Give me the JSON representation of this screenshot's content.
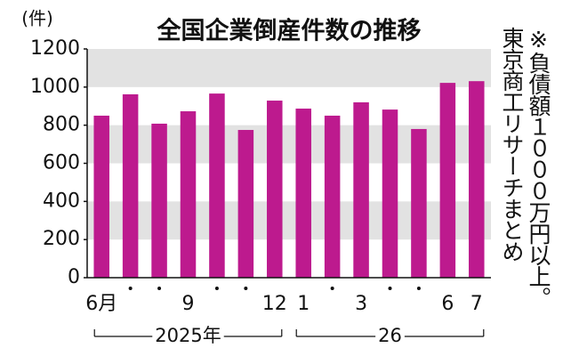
{
  "chart_data": {
    "type": "bar",
    "title": "全国企業倒産件数の推移",
    "unit_label": "(件)",
    "categories": [
      "6月",
      null,
      null,
      "9",
      null,
      null,
      "12",
      "1",
      null,
      "3",
      null,
      null,
      "6",
      "7"
    ],
    "values": [
      850,
      962,
      808,
      873,
      966,
      775,
      929,
      887,
      850,
      920,
      882,
      780,
      1022,
      1031
    ],
    "color": "#bd1a8e",
    "year_groups": [
      "2025年",
      "26"
    ],
    "ylim": [
      0,
      1200
    ],
    "yticks": [
      0,
      200,
      400,
      600,
      800,
      1000,
      1200
    ],
    "grid": "bands",
    "note": [
      "※負債額１０００万円以上。",
      "東京商工リサーチまとめ"
    ]
  }
}
